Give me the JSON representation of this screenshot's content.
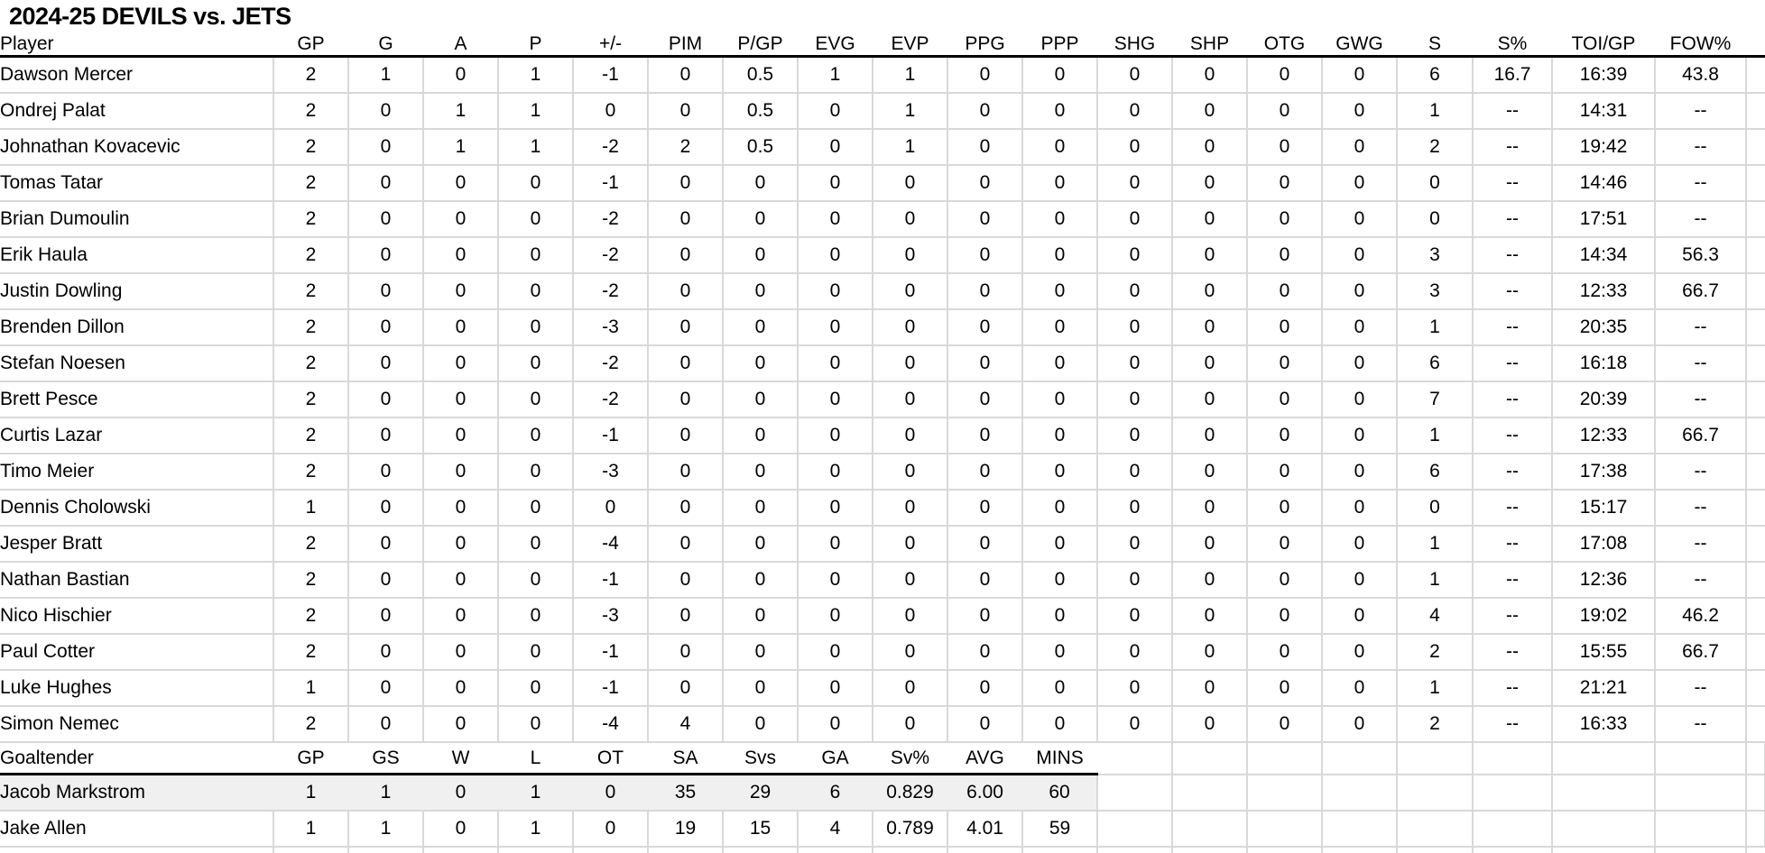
{
  "title": "2024-25 DEVILS vs. JETS",
  "skater_table": {
    "columns": [
      "Player",
      "GP",
      "G",
      "A",
      "P",
      "+/-",
      "PIM",
      "P/GP",
      "EVG",
      "EVP",
      "PPG",
      "PPP",
      "SHG",
      "SHP",
      "OTG",
      "GWG",
      "S",
      "S%",
      "TOI/GP",
      "FOW%"
    ],
    "rows": [
      [
        "Dawson Mercer",
        "2",
        "1",
        "0",
        "1",
        "-1",
        "0",
        "0.5",
        "1",
        "1",
        "0",
        "0",
        "0",
        "0",
        "0",
        "0",
        "6",
        "16.7",
        "16:39",
        "43.8"
      ],
      [
        "Ondrej Palat",
        "2",
        "0",
        "1",
        "1",
        "0",
        "0",
        "0.5",
        "0",
        "1",
        "0",
        "0",
        "0",
        "0",
        "0",
        "0",
        "1",
        "--",
        "14:31",
        "--"
      ],
      [
        "Johnathan Kovacevic",
        "2",
        "0",
        "1",
        "1",
        "-2",
        "2",
        "0.5",
        "0",
        "1",
        "0",
        "0",
        "0",
        "0",
        "0",
        "0",
        "2",
        "--",
        "19:42",
        "--"
      ],
      [
        "Tomas Tatar",
        "2",
        "0",
        "0",
        "0",
        "-1",
        "0",
        "0",
        "0",
        "0",
        "0",
        "0",
        "0",
        "0",
        "0",
        "0",
        "0",
        "--",
        "14:46",
        "--"
      ],
      [
        "Brian Dumoulin",
        "2",
        "0",
        "0",
        "0",
        "-2",
        "0",
        "0",
        "0",
        "0",
        "0",
        "0",
        "0",
        "0",
        "0",
        "0",
        "0",
        "--",
        "17:51",
        "--"
      ],
      [
        "Erik Haula",
        "2",
        "0",
        "0",
        "0",
        "-2",
        "0",
        "0",
        "0",
        "0",
        "0",
        "0",
        "0",
        "0",
        "0",
        "0",
        "3",
        "--",
        "14:34",
        "56.3"
      ],
      [
        "Justin Dowling",
        "2",
        "0",
        "0",
        "0",
        "-2",
        "0",
        "0",
        "0",
        "0",
        "0",
        "0",
        "0",
        "0",
        "0",
        "0",
        "3",
        "--",
        "12:33",
        "66.7"
      ],
      [
        "Brenden Dillon",
        "2",
        "0",
        "0",
        "0",
        "-3",
        "0",
        "0",
        "0",
        "0",
        "0",
        "0",
        "0",
        "0",
        "0",
        "0",
        "1",
        "--",
        "20:35",
        "--"
      ],
      [
        "Stefan Noesen",
        "2",
        "0",
        "0",
        "0",
        "-2",
        "0",
        "0",
        "0",
        "0",
        "0",
        "0",
        "0",
        "0",
        "0",
        "0",
        "6",
        "--",
        "16:18",
        "--"
      ],
      [
        "Brett Pesce",
        "2",
        "0",
        "0",
        "0",
        "-2",
        "0",
        "0",
        "0",
        "0",
        "0",
        "0",
        "0",
        "0",
        "0",
        "0",
        "7",
        "--",
        "20:39",
        "--"
      ],
      [
        "Curtis Lazar",
        "2",
        "0",
        "0",
        "0",
        "-1",
        "0",
        "0",
        "0",
        "0",
        "0",
        "0",
        "0",
        "0",
        "0",
        "0",
        "1",
        "--",
        "12:33",
        "66.7"
      ],
      [
        "Timo Meier",
        "2",
        "0",
        "0",
        "0",
        "-3",
        "0",
        "0",
        "0",
        "0",
        "0",
        "0",
        "0",
        "0",
        "0",
        "0",
        "6",
        "--",
        "17:38",
        "--"
      ],
      [
        "Dennis Cholowski",
        "1",
        "0",
        "0",
        "0",
        "0",
        "0",
        "0",
        "0",
        "0",
        "0",
        "0",
        "0",
        "0",
        "0",
        "0",
        "0",
        "--",
        "15:17",
        "--"
      ],
      [
        "Jesper Bratt",
        "2",
        "0",
        "0",
        "0",
        "-4",
        "0",
        "0",
        "0",
        "0",
        "0",
        "0",
        "0",
        "0",
        "0",
        "0",
        "1",
        "--",
        "17:08",
        "--"
      ],
      [
        "Nathan Bastian",
        "2",
        "0",
        "0",
        "0",
        "-1",
        "0",
        "0",
        "0",
        "0",
        "0",
        "0",
        "0",
        "0",
        "0",
        "0",
        "1",
        "--",
        "12:36",
        "--"
      ],
      [
        "Nico Hischier",
        "2",
        "0",
        "0",
        "0",
        "-3",
        "0",
        "0",
        "0",
        "0",
        "0",
        "0",
        "0",
        "0",
        "0",
        "0",
        "4",
        "--",
        "19:02",
        "46.2"
      ],
      [
        "Paul Cotter",
        "2",
        "0",
        "0",
        "0",
        "-1",
        "0",
        "0",
        "0",
        "0",
        "0",
        "0",
        "0",
        "0",
        "0",
        "0",
        "2",
        "--",
        "15:55",
        "66.7"
      ],
      [
        "Luke Hughes",
        "1",
        "0",
        "0",
        "0",
        "-1",
        "0",
        "0",
        "0",
        "0",
        "0",
        "0",
        "0",
        "0",
        "0",
        "0",
        "1",
        "--",
        "21:21",
        "--"
      ],
      [
        "Simon Nemec",
        "2",
        "0",
        "0",
        "0",
        "-4",
        "4",
        "0",
        "0",
        "0",
        "0",
        "0",
        "0",
        "0",
        "0",
        "0",
        "2",
        "--",
        "16:33",
        "--"
      ]
    ]
  },
  "goalie_table": {
    "columns": [
      "Goaltender",
      "GP",
      "GS",
      "W",
      "L",
      "OT",
      "SA",
      "Svs",
      "GA",
      "Sv%",
      "AVG",
      "MINS"
    ],
    "rows": [
      [
        "Jacob Markstrom",
        "1",
        "1",
        "0",
        "1",
        "0",
        "35",
        "29",
        "6",
        "0.829",
        "6.00",
        "60"
      ],
      [
        "Jake Allen",
        "1",
        "1",
        "0",
        "1",
        "0",
        "19",
        "15",
        "4",
        "0.789",
        "4.01",
        "59"
      ]
    ],
    "highlighted_row_index": 0
  },
  "colors": {
    "background": "#ffffff",
    "text": "#000000",
    "gridline": "#d8d8d8",
    "header_rule": "#000000",
    "highlight": "#f0f0f0"
  }
}
